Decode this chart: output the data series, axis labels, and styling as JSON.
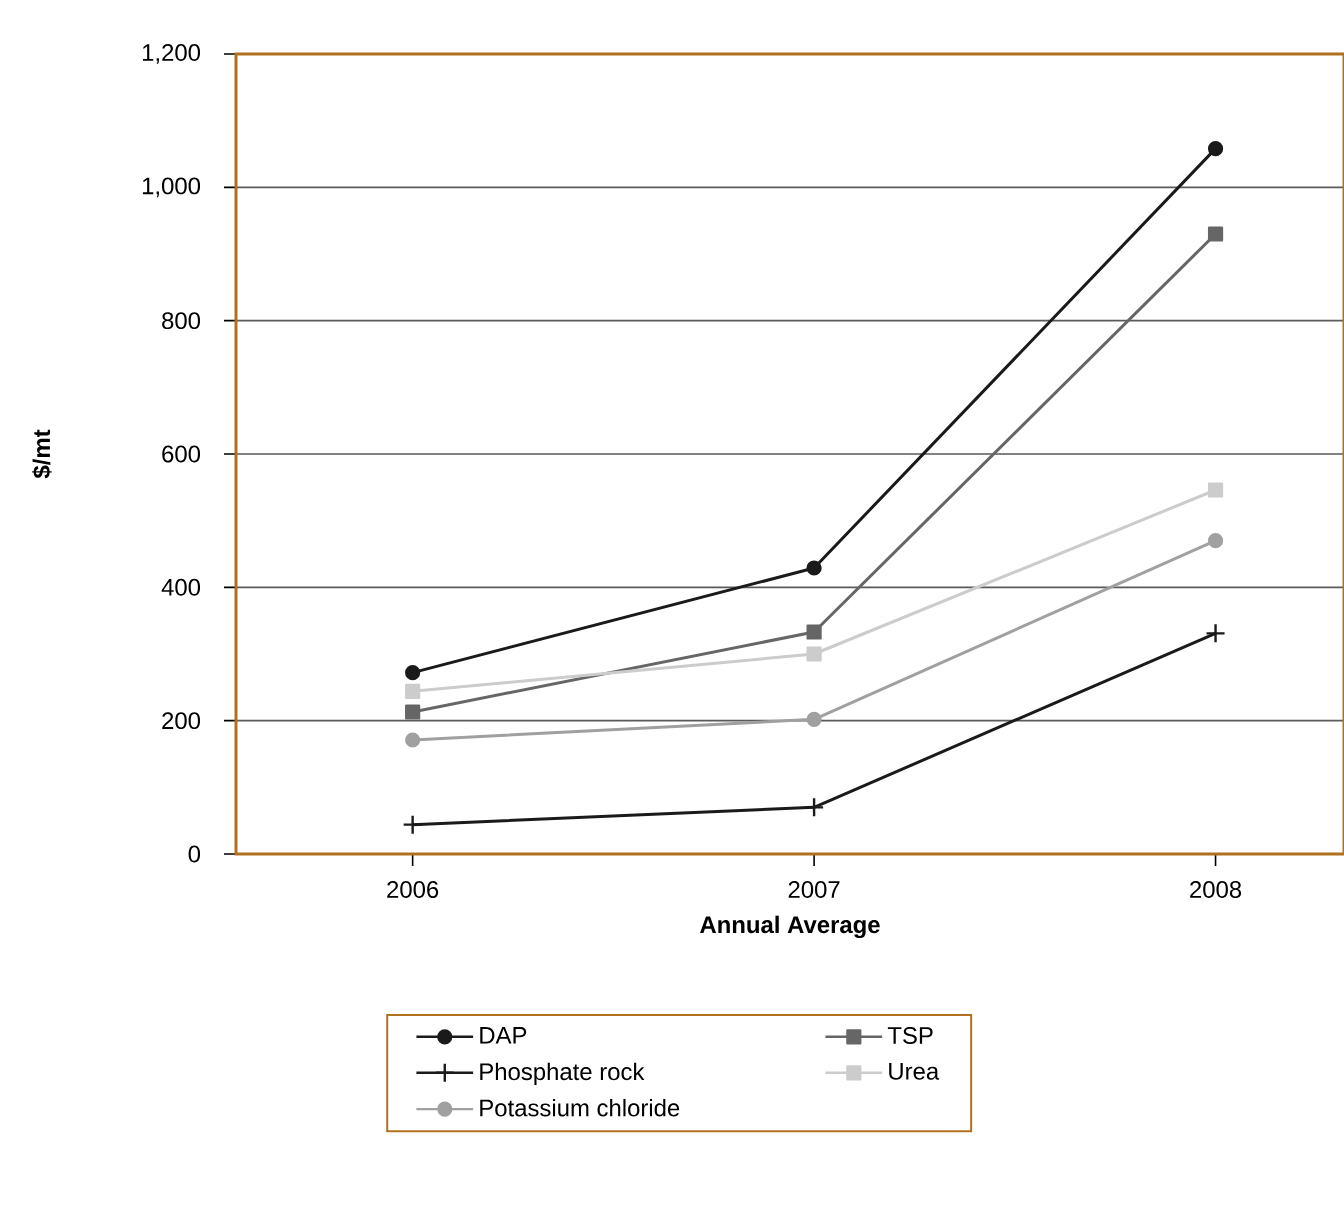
{
  "chart_data": {
    "type": "line",
    "xlabel": "Annual Average",
    "ylabel": "$/mt",
    "x": [
      2006,
      2007,
      2008
    ],
    "xlim": [
      2005.56,
      2008.32
    ],
    "xticks": [
      2006,
      2007,
      2008
    ],
    "ylim": [
      0,
      1200
    ],
    "yticks": [
      {
        "value": 0,
        "label": "0"
      },
      {
        "value": 200,
        "label": "200"
      },
      {
        "value": 400,
        "label": "400"
      },
      {
        "value": 600,
        "label": "600"
      },
      {
        "value": 800,
        "label": "800"
      },
      {
        "value": 1000,
        "label": "1,000"
      },
      {
        "value": 1200,
        "label": "1,200"
      }
    ],
    "grid": "y",
    "legend": "bottom",
    "line_style": "solid",
    "series": [
      {
        "name": "DAP",
        "color": "#1a1a1a",
        "marker": "circle",
        "values": [
          272,
          429,
          1058
        ]
      },
      {
        "name": "TSP",
        "color": "#666666",
        "marker": "square",
        "values": [
          213,
          333,
          930
        ]
      },
      {
        "name": "Phosphate rock",
        "color": "#1a1a1a",
        "marker": "cross",
        "values": [
          44,
          70,
          331
        ]
      },
      {
        "name": "Urea",
        "color": "#cccccc",
        "marker": "square",
        "values": [
          244,
          300,
          546
        ]
      },
      {
        "name": "Potassium chloride",
        "color": "#a0a0a0",
        "marker": "circle",
        "values": [
          171,
          202,
          470
        ]
      }
    ]
  }
}
